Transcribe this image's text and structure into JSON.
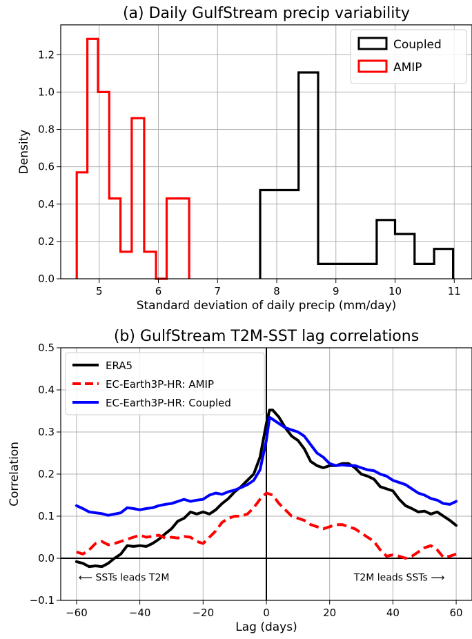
{
  "chart_data": [
    {
      "type": "histogram",
      "title": "(a) Daily GulfStream precip variability",
      "xlabel": "Standard deviation of daily precip (mm/day)",
      "ylabel": "Density",
      "xlim": [
        4.35,
        11.3
      ],
      "ylim": [
        0,
        1.36
      ],
      "xticks": [
        5,
        6,
        7,
        8,
        9,
        10,
        11
      ],
      "yticks": [
        0.0,
        0.2,
        0.4,
        0.6,
        0.8,
        1.0,
        1.2
      ],
      "grid": true,
      "legend_position": "top-right",
      "colors": {
        "Coupled": "#000000",
        "AMIP": "#ff0000"
      },
      "series": [
        {
          "name": "Coupled",
          "edges": [
            7.72,
            8.37,
            8.7,
            9.69,
            10.0,
            10.33,
            10.66,
            10.98
          ],
          "density": [
            0.475,
            1.105,
            0.08,
            0.315,
            0.24,
            0.08,
            0.16
          ]
        },
        {
          "name": "AMIP",
          "edges": [
            4.62,
            4.8,
            4.98,
            5.17,
            5.36,
            5.55,
            5.76,
            5.96,
            6.14,
            6.52
          ],
          "density": [
            0.57,
            1.285,
            1.0,
            0.43,
            0.145,
            0.86,
            0.145,
            0.0,
            0.43
          ]
        }
      ]
    },
    {
      "type": "line",
      "title": "(b) GulfStream T2M-SST lag correlations",
      "xlabel": "Lag (days)",
      "ylabel": "Correlation",
      "xlim": [
        -65,
        65
      ],
      "ylim": [
        -0.1,
        0.5
      ],
      "xticks": [
        -60,
        -40,
        -20,
        0,
        20,
        40,
        60
      ],
      "yticks": [
        -0.1,
        0.0,
        0.1,
        0.2,
        0.3,
        0.4,
        0.5
      ],
      "grid": true,
      "legend_position": "top-left",
      "annotations": [
        {
          "text": "⟵ SSTs leads T2M",
          "x": -45,
          "y": -0.045
        },
        {
          "text": "T2M leads SSTs ⟶",
          "x": 42,
          "y": -0.045
        }
      ],
      "series": [
        {
          "name": "ERA5",
          "color": "#000000",
          "style": "solid",
          "x": [
            -60,
            -58,
            -56,
            -54,
            -52,
            -50,
            -48,
            -46,
            -44,
            -42,
            -40,
            -38,
            -36,
            -34,
            -32,
            -30,
            -28,
            -26,
            -24,
            -22,
            -20,
            -18,
            -16,
            -14,
            -12,
            -10,
            -8,
            -6,
            -4,
            -2,
            0,
            1,
            2,
            4,
            6,
            8,
            10,
            12,
            14,
            16,
            18,
            20,
            22,
            24,
            26,
            28,
            30,
            32,
            34,
            36,
            38,
            40,
            42,
            44,
            46,
            48,
            50,
            52,
            54,
            56,
            58,
            60
          ],
          "y": [
            -0.008,
            -0.012,
            -0.02,
            -0.018,
            -0.02,
            -0.012,
            0.0,
            0.01,
            0.03,
            0.028,
            0.03,
            0.028,
            0.035,
            0.045,
            0.058,
            0.07,
            0.088,
            0.095,
            0.11,
            0.105,
            0.11,
            0.105,
            0.115,
            0.13,
            0.142,
            0.158,
            0.17,
            0.185,
            0.2,
            0.24,
            0.32,
            0.352,
            0.352,
            0.335,
            0.31,
            0.29,
            0.28,
            0.26,
            0.23,
            0.22,
            0.215,
            0.22,
            0.22,
            0.225,
            0.225,
            0.215,
            0.2,
            0.195,
            0.188,
            0.17,
            0.165,
            0.16,
            0.14,
            0.125,
            0.118,
            0.11,
            0.112,
            0.105,
            0.11,
            0.1,
            0.09,
            0.078
          ]
        },
        {
          "name": "EC-Earth3P-HR: AMIP",
          "color": "#ff0000",
          "style": "dashed",
          "x": [
            -60,
            -58,
            -56,
            -54,
            -52,
            -50,
            -48,
            -46,
            -44,
            -42,
            -40,
            -38,
            -36,
            -34,
            -32,
            -30,
            -28,
            -26,
            -24,
            -22,
            -20,
            -18,
            -16,
            -14,
            -12,
            -10,
            -8,
            -6,
            -4,
            -2,
            0,
            2,
            4,
            6,
            8,
            10,
            12,
            14,
            16,
            18,
            20,
            22,
            24,
            26,
            28,
            30,
            32,
            34,
            36,
            38,
            40,
            42,
            44,
            46,
            48,
            50,
            52,
            54,
            56,
            58,
            60
          ],
          "y": [
            0.015,
            0.01,
            0.02,
            0.035,
            0.04,
            0.032,
            0.035,
            0.04,
            0.045,
            0.05,
            0.055,
            0.05,
            0.052,
            0.055,
            0.048,
            0.05,
            0.048,
            0.052,
            0.05,
            0.04,
            0.035,
            0.05,
            0.065,
            0.085,
            0.095,
            0.1,
            0.1,
            0.105,
            0.12,
            0.14,
            0.155,
            0.15,
            0.13,
            0.115,
            0.1,
            0.095,
            0.09,
            0.08,
            0.075,
            0.07,
            0.075,
            0.08,
            0.08,
            0.075,
            0.07,
            0.06,
            0.05,
            0.04,
            0.02,
            0.005,
            0.008,
            0.005,
            0.0,
            0.005,
            0.015,
            0.025,
            0.03,
            0.02,
            0.002,
            0.005,
            0.01
          ]
        },
        {
          "name": "EC-Earth3P-HR: Coupled",
          "color": "#0000ff",
          "style": "solid",
          "x": [
            -60,
            -58,
            -56,
            -54,
            -52,
            -50,
            -48,
            -46,
            -44,
            -42,
            -40,
            -38,
            -36,
            -34,
            -32,
            -30,
            -28,
            -26,
            -24,
            -22,
            -20,
            -18,
            -16,
            -14,
            -12,
            -10,
            -8,
            -6,
            -4,
            -2,
            0,
            1,
            2,
            4,
            6,
            8,
            10,
            12,
            14,
            16,
            18,
            20,
            22,
            24,
            26,
            28,
            30,
            32,
            34,
            36,
            38,
            40,
            42,
            44,
            46,
            48,
            50,
            52,
            54,
            56,
            58,
            60
          ],
          "y": [
            0.125,
            0.118,
            0.11,
            0.108,
            0.106,
            0.102,
            0.105,
            0.108,
            0.12,
            0.118,
            0.115,
            0.118,
            0.12,
            0.125,
            0.128,
            0.13,
            0.135,
            0.14,
            0.135,
            0.138,
            0.14,
            0.15,
            0.155,
            0.152,
            0.158,
            0.162,
            0.168,
            0.175,
            0.185,
            0.21,
            0.28,
            0.335,
            0.33,
            0.32,
            0.31,
            0.305,
            0.3,
            0.29,
            0.27,
            0.25,
            0.24,
            0.225,
            0.22,
            0.222,
            0.22,
            0.22,
            0.215,
            0.21,
            0.208,
            0.2,
            0.195,
            0.185,
            0.18,
            0.175,
            0.165,
            0.155,
            0.15,
            0.142,
            0.138,
            0.13,
            0.128,
            0.135
          ]
        }
      ]
    }
  ]
}
